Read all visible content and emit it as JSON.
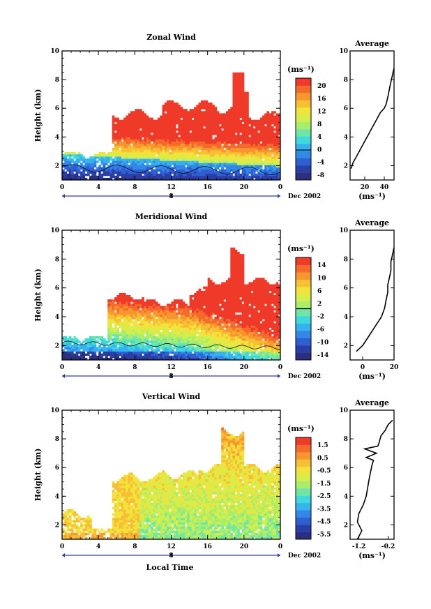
{
  "chart_data": [
    {
      "type": "heatmap",
      "title": "Zonal Wind",
      "ylabel": "Height (km)",
      "ylim": [
        1,
        10
      ],
      "yticks": [
        "2",
        "4",
        "6",
        "8",
        "10"
      ],
      "xlim": [
        0,
        24
      ],
      "xticks": [
        "0",
        "4",
        "8",
        "12",
        "16",
        "20",
        "0"
      ],
      "date_day": "8",
      "date_label": "Dec 2002",
      "colorbar": {
        "unit_label": "(ms⁻¹)",
        "range": [
          -10,
          24
        ],
        "ticks": [
          "20",
          "16",
          "12",
          "8",
          "4",
          "0",
          "-4",
          "-8"
        ],
        "contour_at": 0
      },
      "average_profile": {
        "title": "Average",
        "xlabel": "(ms⁻¹)",
        "xticks": [
          "20",
          "40"
        ],
        "yticks": [
          "2",
          "4",
          "6",
          "8",
          "10"
        ],
        "xlim": [
          5,
          50
        ],
        "x": [
          6,
          8,
          12,
          16,
          20,
          24,
          28,
          32,
          36,
          40,
          42,
          44,
          46,
          48,
          50
        ],
        "y": [
          1.8,
          2.2,
          2.7,
          3.2,
          3.7,
          4.2,
          4.7,
          5.2,
          5.7,
          6.0,
          6.3,
          6.9,
          7.6,
          8.2,
          8.8
        ]
      }
    },
    {
      "type": "heatmap",
      "title": "Meridional Wind",
      "ylabel": "Height (km)",
      "ylim": [
        1,
        10
      ],
      "yticks": [
        "2",
        "4",
        "6",
        "8",
        "10"
      ],
      "xlim": [
        0,
        24
      ],
      "xticks": [
        "0",
        "4",
        "8",
        "12",
        "16",
        "20",
        "0"
      ],
      "date_day": "8",
      "date_label": "Dec 2002",
      "colorbar": {
        "unit_label": "(ms⁻¹)",
        "range": [
          -16,
          16
        ],
        "ticks": [
          "14",
          "10",
          "6",
          "2",
          "-2",
          "-6",
          "-10",
          "-14"
        ],
        "contour_at": 0
      },
      "average_profile": {
        "title": "Average",
        "xlabel": "(ms⁻¹)",
        "xticks": [
          "0",
          "20"
        ],
        "yticks": [
          "2",
          "4",
          "6",
          "8",
          "10"
        ],
        "xlim": [
          -8,
          20
        ],
        "x": [
          -4,
          0,
          3,
          6,
          9,
          12,
          14,
          15,
          16,
          16,
          17,
          18,
          18,
          19,
          20
        ],
        "y": [
          1.6,
          2.0,
          2.5,
          3.0,
          3.5,
          4.0,
          4.6,
          5.2,
          5.7,
          6.2,
          6.7,
          7.2,
          7.8,
          8.3,
          8.8
        ]
      }
    },
    {
      "type": "heatmap",
      "title": "Vertical Wind",
      "ylabel": "Height (km)",
      "ylim": [
        1,
        10
      ],
      "yticks": [
        "2",
        "4",
        "6",
        "8",
        "10"
      ],
      "xlim": [
        0,
        24
      ],
      "xticks": [
        "0",
        "4",
        "8",
        "12",
        "16",
        "20",
        "0"
      ],
      "date_day": "8",
      "date_label": "Dec 2002",
      "xlabel": "Local Time",
      "colorbar": {
        "unit_label": "(ms⁻¹)",
        "range": [
          -7,
          2.5
        ],
        "ticks": [
          "1.5",
          "0.5",
          "-0.5",
          "-1.5",
          "-2.5",
          "-3.5",
          "-4.5",
          "-5.5"
        ]
      },
      "average_profile": {
        "title": "Average",
        "xlabel": "(ms⁻¹)",
        "xticks": [
          "-1.2",
          "-0.2"
        ],
        "yticks": [
          "2",
          "4",
          "6",
          "8",
          "10"
        ],
        "xlim": [
          -1.5,
          0.0
        ],
        "x": [
          -1.25,
          -1.1,
          -1.25,
          -1.2,
          -1.05,
          -0.95,
          -0.9,
          -0.85,
          -0.8,
          -0.75,
          -0.7,
          -0.95,
          -0.6,
          -1.0,
          -0.55,
          -0.5,
          -0.45,
          -0.3,
          -0.2,
          -0.05
        ],
        "y": [
          1.0,
          1.6,
          2.2,
          2.8,
          3.4,
          4.0,
          4.6,
          5.2,
          5.7,
          6.2,
          6.5,
          6.7,
          7.0,
          7.3,
          7.5,
          7.8,
          8.2,
          8.6,
          9.0,
          9.3
        ]
      }
    }
  ]
}
